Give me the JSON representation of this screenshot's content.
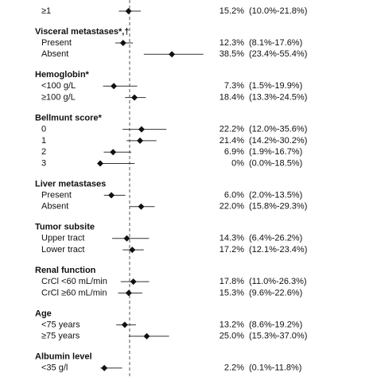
{
  "chart_data": {
    "type": "forest",
    "xlim": [
      0,
      60
    ],
    "reference": 15.8,
    "groups": [
      {
        "rows": [
          {
            "label": "≥1",
            "value": 15.2,
            "lower": 10.0,
            "upper": 21.8,
            "value_label": "15.2%",
            "ci_label": "(10.0%-21.8%)"
          }
        ]
      },
      {
        "title": "Visceral metastases*,†",
        "rows": [
          {
            "label": "Present",
            "value": 12.3,
            "lower": 8.1,
            "upper": 17.6,
            "value_label": "12.3%",
            "ci_label": "(8.1%-17.6%)"
          },
          {
            "label": "Absent",
            "value": 38.5,
            "lower": 23.4,
            "upper": 55.4,
            "value_label": "38.5%",
            "ci_label": "(23.4%-55.4%)"
          }
        ]
      },
      {
        "title": "Hemoglobin*",
        "rows": [
          {
            "label": "<100 g/L",
            "value": 7.3,
            "lower": 1.5,
            "upper": 19.9,
            "value_label": "7.3%",
            "ci_label": "(1.5%-19.9%)"
          },
          {
            "label": "≥100 g/L",
            "value": 18.4,
            "lower": 13.3,
            "upper": 24.5,
            "value_label": "18.4%",
            "ci_label": "(13.3%-24.5%)"
          }
        ]
      },
      {
        "title": "Bellmunt score*",
        "rows": [
          {
            "label": "0",
            "value": 22.2,
            "lower": 12.0,
            "upper": 35.6,
            "value_label": "22.2%",
            "ci_label": "(12.0%-35.6%)"
          },
          {
            "label": "1",
            "value": 21.4,
            "lower": 14.2,
            "upper": 30.2,
            "value_label": "21.4%",
            "ci_label": "(14.2%-30.2%)"
          },
          {
            "label": "2",
            "value": 6.9,
            "lower": 1.9,
            "upper": 16.7,
            "value_label": "6.9%",
            "ci_label": "(1.9%-16.7%)"
          },
          {
            "label": "3",
            "value": 0,
            "lower": 0.0,
            "upper": 18.5,
            "value_label": "0%",
            "ci_label": "(0.0%-18.5%)"
          }
        ]
      },
      {
        "title": "Liver metastases",
        "rows": [
          {
            "label": "Present",
            "value": 6.0,
            "lower": 2.0,
            "upper": 13.5,
            "value_label": "6.0%",
            "ci_label": "(2.0%-13.5%)"
          },
          {
            "label": "Absent",
            "value": 22.0,
            "lower": 15.8,
            "upper": 29.3,
            "value_label": "22.0%",
            "ci_label": "(15.8%-29.3%)"
          }
        ]
      },
      {
        "title": "Tumor subsite",
        "rows": [
          {
            "label": "Upper tract",
            "value": 14.3,
            "lower": 6.4,
            "upper": 26.2,
            "value_label": "14.3%",
            "ci_label": "(6.4%-26.2%)"
          },
          {
            "label": "Lower tract",
            "value": 17.2,
            "lower": 12.1,
            "upper": 23.4,
            "value_label": "17.2%",
            "ci_label": "(12.1%-23.4%)"
          }
        ]
      },
      {
        "title": "Renal function",
        "rows": [
          {
            "label": "CrCl <60 mL/min",
            "value": 17.8,
            "lower": 11.0,
            "upper": 26.3,
            "value_label": "17.8%",
            "ci_label": "(11.0%-26.3%)"
          },
          {
            "label": "CrCl ≥60 mL/min",
            "value": 15.3,
            "lower": 9.6,
            "upper": 22.6,
            "value_label": "15.3%",
            "ci_label": "(9.6%-22.6%)"
          }
        ]
      },
      {
        "title": "Age",
        "rows": [
          {
            "label": "<75 years",
            "value": 13.2,
            "lower": 8.6,
            "upper": 19.2,
            "value_label": "13.2%",
            "ci_label": "(8.6%-19.2%)"
          },
          {
            "label": "≥75 years",
            "value": 25.0,
            "lower": 15.3,
            "upper": 37.0,
            "value_label": "25.0%",
            "ci_label": "(15.3%-37.0%)"
          }
        ]
      },
      {
        "title": "Albumin level",
        "rows": [
          {
            "label": "<35 g/l",
            "value": 2.2,
            "lower": 0.1,
            "upper": 11.8,
            "value_label": "2.2%",
            "ci_label": "(0.1%-11.8%)"
          }
        ]
      }
    ]
  }
}
